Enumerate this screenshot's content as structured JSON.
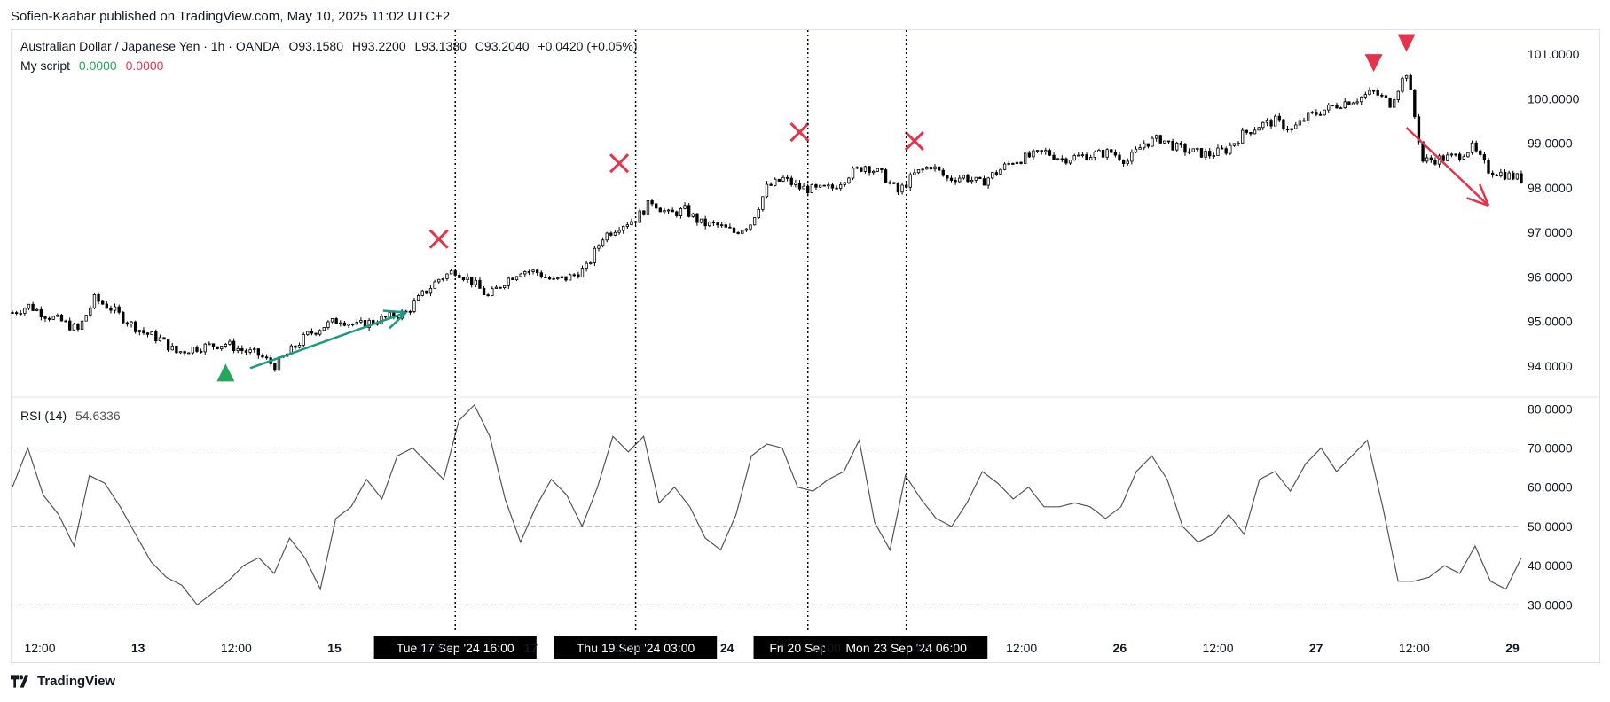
{
  "header": {
    "published": "Sofien-Kaabar published on TradingView.com, May 10, 2025 11:02 UTC+2"
  },
  "footer": {
    "brand": "TradingView",
    "logo_icon": "tradingview-logo-icon"
  },
  "colors": {
    "buy": "#26a65b",
    "sell": "#e5334b",
    "trend_up": "#1a9a84",
    "trend_down": "#e5334b",
    "rsi_line": "#555555",
    "candle": "#000000",
    "grid_dash": "#999999"
  },
  "legend": {
    "symbol": "Australian Dollar / Japanese Yen · 1h · OANDA",
    "open": "O93.1580",
    "high": "H93.2200",
    "low": "L93.1380",
    "close": "C93.2040",
    "change": "+0.0420 (+0.05%)",
    "script_name": "My script",
    "script_val1": "0.0000",
    "script_val2": "0.0000",
    "rsi_name": "RSI (14)",
    "rsi_value": "54.6336"
  },
  "chart_data": [
    {
      "type": "candlestick",
      "title": "Australian Dollar / Japanese Yen · 1h · OANDA",
      "price_axis_ticks": [
        "101.0000",
        "100.0000",
        "99.0000",
        "98.0000",
        "97.0000",
        "96.0000",
        "95.0000",
        "94.0000"
      ],
      "ylim": [
        93.3,
        101.5
      ],
      "time_axis_ticks": [
        "12:00",
        "13",
        "12:00",
        "15",
        "12:00",
        "17",
        "12:00",
        "24",
        "12:00",
        "25",
        "12:00",
        "26",
        "12:00",
        "27",
        "12:00",
        "29"
      ],
      "close_path": [
        {
          "t": 0,
          "p": 95.2
        },
        {
          "t": 1,
          "p": 95.35
        },
        {
          "t": 2,
          "p": 95.15
        },
        {
          "t": 3,
          "p": 95.0
        },
        {
          "t": 4,
          "p": 94.8
        },
        {
          "t": 5,
          "p": 95.5
        },
        {
          "t": 6,
          "p": 95.3
        },
        {
          "t": 7,
          "p": 95.0
        },
        {
          "t": 8,
          "p": 94.75
        },
        {
          "t": 9,
          "p": 94.6
        },
        {
          "t": 10,
          "p": 94.3
        },
        {
          "t": 11,
          "p": 94.4
        },
        {
          "t": 12,
          "p": 94.45
        },
        {
          "t": 13,
          "p": 94.5
        },
        {
          "t": 14,
          "p": 94.35
        },
        {
          "t": 15,
          "p": 94.25
        },
        {
          "t": 16,
          "p": 94.0
        },
        {
          "t": 17,
          "p": 94.35
        },
        {
          "t": 18,
          "p": 94.7
        },
        {
          "t": 19,
          "p": 94.9
        },
        {
          "t": 20,
          "p": 95.05
        },
        {
          "t": 21,
          "p": 94.9
        },
        {
          "t": 22,
          "p": 95.0
        },
        {
          "t": 23,
          "p": 95.1
        },
        {
          "t": 24,
          "p": 95.2
        },
        {
          "t": 25,
          "p": 95.6
        },
        {
          "t": 26,
          "p": 95.95
        },
        {
          "t": 27,
          "p": 96.15
        },
        {
          "t": 28,
          "p": 95.9
        },
        {
          "t": 29,
          "p": 95.55
        },
        {
          "t": 30,
          "p": 95.9
        },
        {
          "t": 31,
          "p": 96.15
        },
        {
          "t": 32,
          "p": 96.1
        },
        {
          "t": 33,
          "p": 95.9
        },
        {
          "t": 34,
          "p": 96.0
        },
        {
          "t": 35,
          "p": 96.2
        },
        {
          "t": 36,
          "p": 96.9
        },
        {
          "t": 37,
          "p": 97.15
        },
        {
          "t": 38,
          "p": 97.3
        },
        {
          "t": 39,
          "p": 97.7
        },
        {
          "t": 40,
          "p": 97.4
        },
        {
          "t": 41,
          "p": 97.5
        },
        {
          "t": 42,
          "p": 97.2
        },
        {
          "t": 43,
          "p": 97.15
        },
        {
          "t": 44,
          "p": 97.0
        },
        {
          "t": 45,
          "p": 97.2
        },
        {
          "t": 46,
          "p": 98.0
        },
        {
          "t": 47,
          "p": 98.2
        },
        {
          "t": 48,
          "p": 98.0
        },
        {
          "t": 49,
          "p": 97.95
        },
        {
          "t": 50,
          "p": 98.0
        },
        {
          "t": 51,
          "p": 98.3
        },
        {
          "t": 52,
          "p": 98.5
        },
        {
          "t": 53,
          "p": 98.3
        },
        {
          "t": 54,
          "p": 97.9
        },
        {
          "t": 55,
          "p": 98.3
        },
        {
          "t": 56,
          "p": 98.5
        },
        {
          "t": 57,
          "p": 98.2
        },
        {
          "t": 58,
          "p": 98.25
        },
        {
          "t": 59,
          "p": 98.1
        },
        {
          "t": 60,
          "p": 98.35
        },
        {
          "t": 61,
          "p": 98.6
        },
        {
          "t": 62,
          "p": 98.7
        },
        {
          "t": 63,
          "p": 98.8
        },
        {
          "t": 64,
          "p": 98.65
        },
        {
          "t": 65,
          "p": 98.7
        },
        {
          "t": 66,
          "p": 98.75
        },
        {
          "t": 67,
          "p": 98.8
        },
        {
          "t": 68,
          "p": 98.6
        },
        {
          "t": 69,
          "p": 99.0
        },
        {
          "t": 70,
          "p": 99.1
        },
        {
          "t": 71,
          "p": 98.9
        },
        {
          "t": 72,
          "p": 98.8
        },
        {
          "t": 73,
          "p": 98.75
        },
        {
          "t": 74,
          "p": 98.85
        },
        {
          "t": 75,
          "p": 99.2
        },
        {
          "t": 76,
          "p": 99.4
        },
        {
          "t": 77,
          "p": 99.5
        },
        {
          "t": 78,
          "p": 99.3
        },
        {
          "t": 79,
          "p": 99.6
        },
        {
          "t": 80,
          "p": 99.75
        },
        {
          "t": 81,
          "p": 99.9
        },
        {
          "t": 82,
          "p": 100.0
        },
        {
          "t": 83,
          "p": 100.15
        },
        {
          "t": 84,
          "p": 99.9
        },
        {
          "t": 85,
          "p": 100.6
        },
        {
          "t": 86,
          "p": 98.6
        },
        {
          "t": 87,
          "p": 98.65
        },
        {
          "t": 88,
          "p": 98.7
        },
        {
          "t": 89,
          "p": 98.9
        },
        {
          "t": 90,
          "p": 98.4
        },
        {
          "t": 91,
          "p": 98.3
        },
        {
          "t": 92,
          "p": 98.2
        }
      ],
      "buy_signals": [
        {
          "t": 13,
          "p": 93.85
        }
      ],
      "sell_signals": [
        {
          "t": 83,
          "p": 100.8
        },
        {
          "t": 85,
          "p": 101.25
        }
      ],
      "exit_marks": [
        {
          "t": 26,
          "p": 96.85
        },
        {
          "t": 37,
          "p": 98.55
        },
        {
          "t": 48,
          "p": 99.25
        },
        {
          "t": 55,
          "p": 99.05
        }
      ],
      "trend_arrows": [
        {
          "direction": "up",
          "from": {
            "t": 14.5,
            "p": 93.95
          },
          "to": {
            "t": 24,
            "p": 95.2
          }
        },
        {
          "direction": "down",
          "from": {
            "t": 85,
            "p": 99.35
          },
          "to": {
            "t": 90,
            "p": 97.6
          }
        }
      ],
      "vertical_markers": [
        {
          "t": 27,
          "label": "Tue 17 Sep '24   16:00"
        },
        {
          "t": 38,
          "label": "Thu 19 Sep '24   03:00"
        },
        {
          "t": 48.5,
          "label": "Fri 20 Sep '24"
        },
        {
          "t": 54.5,
          "label": "Mon 23 Sep '24   06:00"
        }
      ]
    },
    {
      "type": "line",
      "title": "RSI (14)",
      "value_axis_ticks": [
        "80.0000",
        "70.0000",
        "60.0000",
        "50.0000",
        "40.0000",
        "30.0000"
      ],
      "ylim": [
        26,
        83
      ],
      "levels": [
        70,
        50,
        30
      ],
      "series": [
        {
          "name": "RSI (14)",
          "values": [
            60,
            70,
            58,
            53,
            45,
            63,
            61,
            55,
            48,
            41,
            37,
            35,
            30,
            33,
            36,
            40,
            42,
            38,
            47,
            42,
            34,
            52,
            55,
            62,
            57,
            68,
            70,
            66,
            62,
            77,
            81,
            73,
            57,
            46,
            55,
            62,
            58,
            50,
            60,
            73,
            69,
            73,
            56,
            60,
            55,
            47,
            44,
            53,
            68,
            71,
            70,
            60,
            59,
            62,
            64,
            72,
            51,
            44,
            63,
            57,
            52,
            50,
            56,
            64,
            61,
            57,
            60,
            55,
            55,
            56,
            55,
            52,
            55,
            64,
            68,
            62,
            50,
            46,
            48,
            53,
            48,
            62,
            64,
            59,
            66,
            70,
            64,
            68,
            72,
            55,
            36,
            36,
            37,
            40,
            38,
            45,
            36,
            34,
            42
          ]
        }
      ]
    }
  ]
}
